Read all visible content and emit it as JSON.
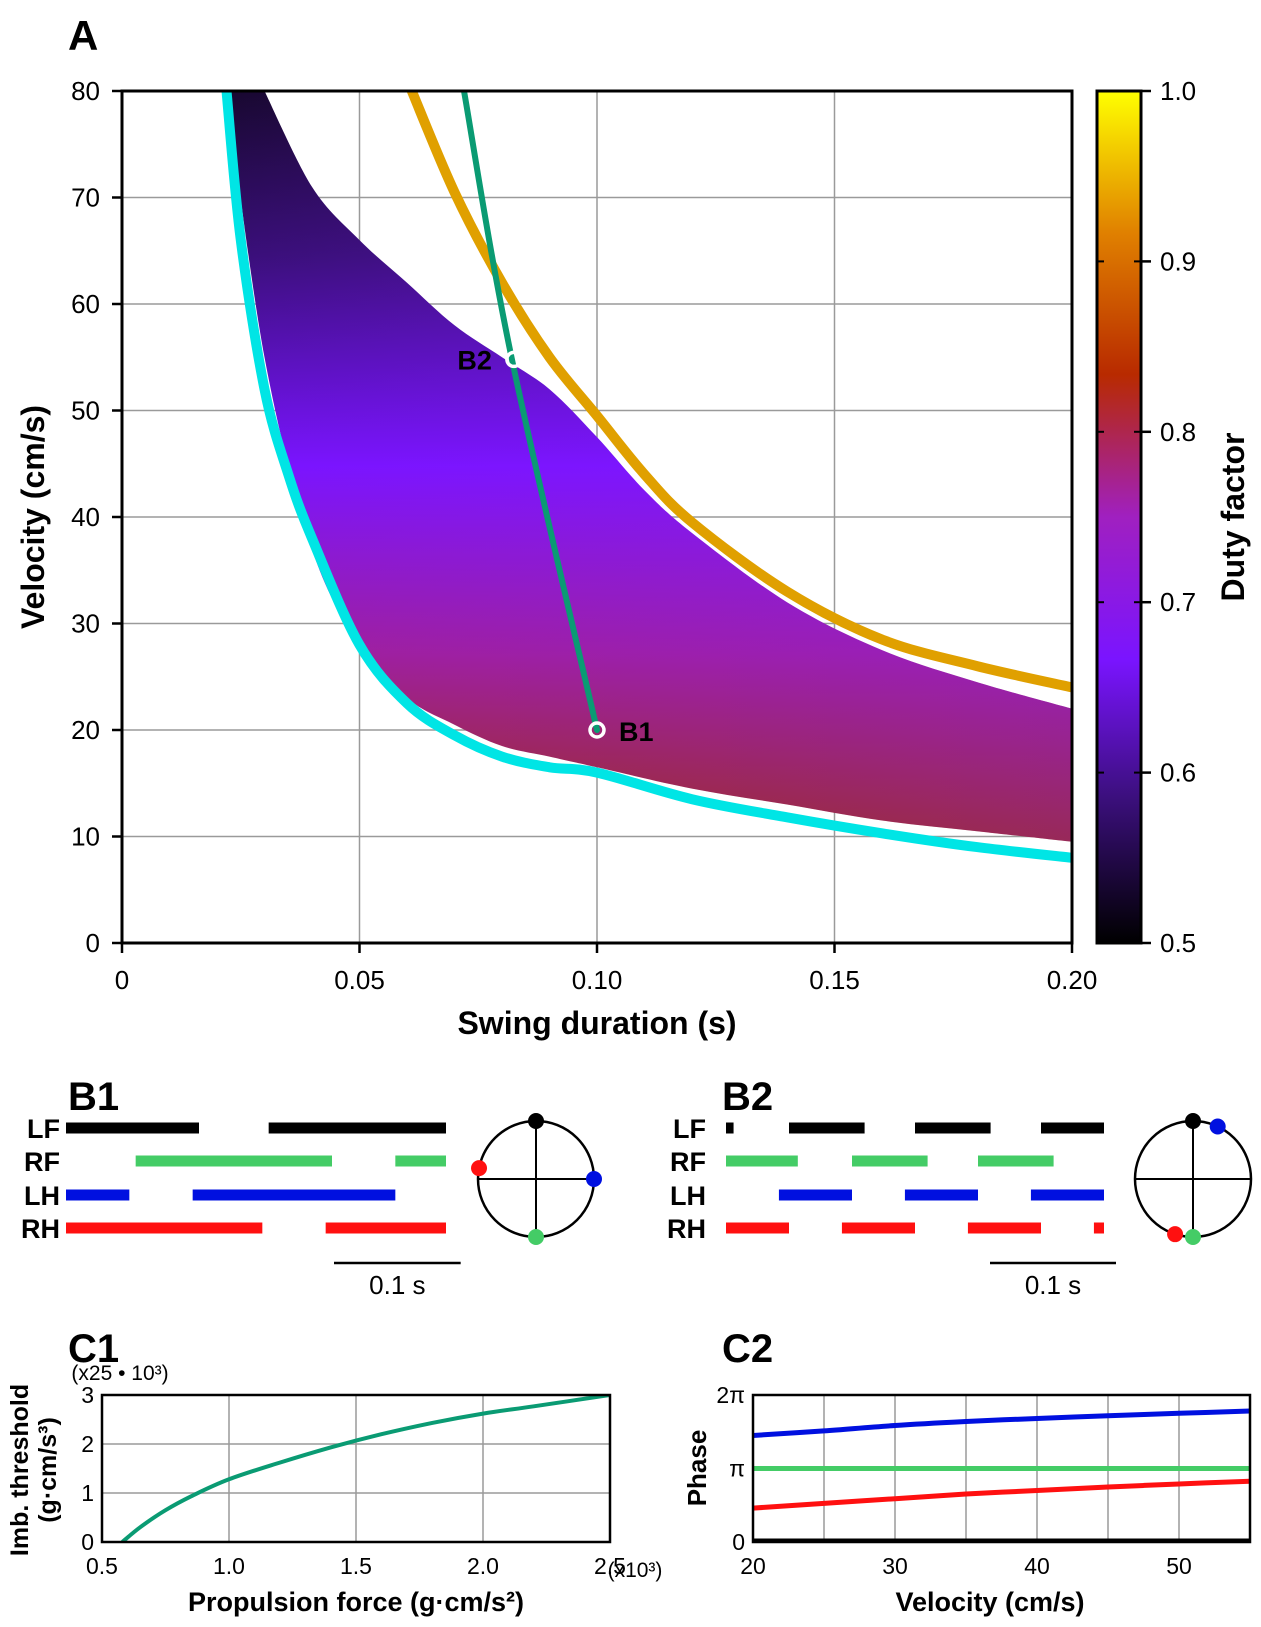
{
  "panels": {
    "A": "A",
    "B1": "B1",
    "B2": "B2",
    "C1": "C1",
    "C2": "C2"
  },
  "chart_data": [
    {
      "id": "A",
      "type": "heatmap",
      "title": "",
      "xlabel": "Swing duration (s)",
      "ylabel": "Velocity (cm/s)",
      "xlim": [
        0,
        0.2
      ],
      "ylim": [
        0,
        80
      ],
      "xticks": [
        {
          "v": 0,
          "label": "0"
        },
        {
          "v": 0.05,
          "label": "0.05"
        },
        {
          "v": 0.1,
          "label": "0.10"
        },
        {
          "v": 0.15,
          "label": "0.15"
        },
        {
          "v": 0.2,
          "label": "0.20"
        }
      ],
      "yticks": [
        {
          "v": 0,
          "label": "0"
        },
        {
          "v": 10,
          "label": "10"
        },
        {
          "v": 20,
          "label": "20"
        },
        {
          "v": 30,
          "label": "30"
        },
        {
          "v": 40,
          "label": "40"
        },
        {
          "v": 50,
          "label": "50"
        },
        {
          "v": 60,
          "label": "60"
        },
        {
          "v": 70,
          "label": "70"
        },
        {
          "v": 80,
          "label": "80"
        }
      ],
      "grid": true,
      "colorbar": {
        "label": "Duty factor",
        "range": [
          0.5,
          1.0
        ],
        "ticks": [
          {
            "v": 0.5,
            "label": "0.5"
          },
          {
            "v": 0.6,
            "label": "0.6"
          },
          {
            "v": 0.7,
            "label": "0.7"
          },
          {
            "v": 0.8,
            "label": "0.8"
          },
          {
            "v": 0.9,
            "label": "0.9"
          },
          {
            "v": 1.0,
            "label": "1.0"
          }
        ],
        "colors": [
          "#000000",
          "#3a0f7a",
          "#7a14ff",
          "#a020c0",
          "#b82a00",
          "#e08000",
          "#ffff00"
        ]
      },
      "region": {
        "description_values": "feasible region between lower and upper bounds",
        "lower_bound": [
          [
            0.022,
            80
          ],
          [
            0.03,
            55
          ],
          [
            0.04,
            37
          ],
          [
            0.05,
            28
          ],
          [
            0.06,
            23
          ],
          [
            0.07,
            20.5
          ],
          [
            0.08,
            18.5
          ],
          [
            0.09,
            17.5
          ],
          [
            0.1,
            16.5
          ],
          [
            0.12,
            14.5
          ],
          [
            0.14,
            13
          ],
          [
            0.16,
            11.5
          ],
          [
            0.18,
            10.5
          ],
          [
            0.2,
            9.5
          ]
        ],
        "upper_bound": [
          [
            0.03,
            80
          ],
          [
            0.04,
            71
          ],
          [
            0.05,
            66
          ],
          [
            0.06,
            62
          ],
          [
            0.07,
            58
          ],
          [
            0.08,
            55
          ],
          [
            0.09,
            52
          ],
          [
            0.1,
            47.5
          ],
          [
            0.11,
            42.5
          ],
          [
            0.12,
            38.5
          ],
          [
            0.14,
            32
          ],
          [
            0.16,
            27.5
          ],
          [
            0.18,
            24.5
          ],
          [
            0.2,
            22
          ]
        ]
      },
      "series": [
        {
          "color": "#00e5e5",
          "points": [
            [
              0.022,
              80
            ],
            [
              0.025,
              66
            ],
            [
              0.03,
              52
            ],
            [
              0.035,
              44
            ],
            [
              0.04,
              38
            ],
            [
              0.05,
              28
            ],
            [
              0.06,
              22.5
            ],
            [
              0.07,
              19.5
            ],
            [
              0.08,
              17.5
            ],
            [
              0.09,
              16.5
            ],
            [
              0.1,
              16
            ],
            [
              0.12,
              13.5
            ],
            [
              0.14,
              11.8
            ],
            [
              0.16,
              10.3
            ],
            [
              0.18,
              9
            ],
            [
              0.2,
              8
            ]
          ]
        },
        {
          "color": "#e0a000",
          "points": [
            [
              0.061,
              80
            ],
            [
              0.07,
              70.5
            ],
            [
              0.08,
              62
            ],
            [
              0.09,
              55
            ],
            [
              0.1,
              49.5
            ],
            [
              0.11,
              44
            ],
            [
              0.12,
              39.5
            ],
            [
              0.14,
              33
            ],
            [
              0.16,
              28.5
            ],
            [
              0.18,
              26
            ],
            [
              0.2,
              24
            ]
          ]
        },
        {
          "color": "#0a9b73",
          "points": [
            [
              0.072,
              80
            ],
            [
              0.082,
              55
            ],
            [
              0.1,
              20
            ]
          ]
        }
      ],
      "points": [
        {
          "label": "B1",
          "x": 0.1,
          "y": 20
        },
        {
          "label": "B2",
          "x": 0.0825,
          "y": 54.8
        }
      ]
    },
    {
      "id": "B1",
      "type": "gait-diagram",
      "period_s": 0.34,
      "scalebar_label": "0.1 s",
      "rows": [
        {
          "label": "LF",
          "color": "#000000",
          "segments": [
            [
              0.0,
              0.105
            ],
            [
              0.16,
              0.3
            ]
          ]
        },
        {
          "label": "RF",
          "color": "#44cc66",
          "segments": [
            [
              0.055,
              0.21
            ],
            [
              0.26,
              0.3
            ]
          ]
        },
        {
          "label": "LH",
          "color": "#0010e0",
          "segments": [
            [
              0.0,
              0.05
            ],
            [
              0.1,
              0.26
            ]
          ]
        },
        {
          "label": "RH",
          "color": "#ff1010",
          "segments": [
            [
              0.0,
              0.155
            ],
            [
              0.205,
              0.3
            ]
          ]
        }
      ],
      "phase_circle": [
        {
          "limb": "LF",
          "color": "#000000",
          "phase": 0.0
        },
        {
          "limb": "RF",
          "color": "#44cc66",
          "phase": 0.5
        },
        {
          "limb": "LH",
          "color": "#0010e0",
          "phase": 0.25
        },
        {
          "limb": "RH",
          "color": "#ff1010",
          "phase": 0.78
        }
      ]
    },
    {
      "id": "B2",
      "type": "gait-diagram",
      "period_s": 0.1,
      "scalebar_label": "0.1 s",
      "rows": [
        {
          "label": "LF",
          "color": "#000000",
          "segments": [
            [
              0.0,
              0.006
            ],
            [
              0.05,
              0.11
            ],
            [
              0.15,
              0.21
            ],
            [
              0.25,
              0.3
            ]
          ]
        },
        {
          "label": "RF",
          "color": "#44cc66",
          "segments": [
            [
              0.0,
              0.057
            ],
            [
              0.1,
              0.16
            ],
            [
              0.2,
              0.26
            ]
          ]
        },
        {
          "label": "LH",
          "color": "#0010e0",
          "segments": [
            [
              0.042,
              0.1
            ],
            [
              0.142,
              0.2
            ],
            [
              0.242,
              0.3
            ]
          ]
        },
        {
          "label": "RH",
          "color": "#ff1010",
          "segments": [
            [
              0.0,
              0.05
            ],
            [
              0.092,
              0.15
            ],
            [
              0.192,
              0.25
            ],
            [
              0.292,
              0.3
            ]
          ]
        }
      ],
      "phase_circle": [
        {
          "limb": "LF",
          "color": "#000000",
          "phase": 0.0
        },
        {
          "limb": "RF",
          "color": "#44cc66",
          "phase": 0.5
        },
        {
          "limb": "LH",
          "color": "#0010e0",
          "phase": 0.07
        },
        {
          "limb": "RH",
          "color": "#ff1010",
          "phase": 0.55
        }
      ]
    },
    {
      "id": "C1",
      "type": "line",
      "title": "",
      "xlabel": "Propulsion force (g·cm/s²)",
      "ylabel": "Imb. threshold (g·cm/s³)",
      "ylabel_line1": "Imb. threshold",
      "ylabel_line2": "(g·cm/s³)",
      "x_multiplier": "(x10³)",
      "y_multiplier": "(x25 • 10³)",
      "xlim": [
        0.5,
        2.5
      ],
      "ylim": [
        0,
        3
      ],
      "xticks": [
        {
          "v": 0.5,
          "label": "0.5"
        },
        {
          "v": 1.0,
          "label": "1.0"
        },
        {
          "v": 1.5,
          "label": "1.5"
        },
        {
          "v": 2.0,
          "label": "2.0"
        },
        {
          "v": 2.5,
          "label": "2.5"
        }
      ],
      "yticks": [
        {
          "v": 0,
          "label": "0"
        },
        {
          "v": 1,
          "label": "1"
        },
        {
          "v": 2,
          "label": "2"
        },
        {
          "v": 3,
          "label": "3"
        }
      ],
      "grid": true,
      "series": [
        {
          "color": "#0a9b73",
          "x": [
            0.58,
            0.65,
            0.75,
            0.85,
            1.0,
            1.2,
            1.4,
            1.6,
            1.8,
            2.0,
            2.2,
            2.5
          ],
          "y": [
            0.0,
            0.3,
            0.65,
            0.93,
            1.28,
            1.62,
            1.93,
            2.2,
            2.43,
            2.62,
            2.77,
            3.0
          ]
        }
      ]
    },
    {
      "id": "C2",
      "type": "line",
      "title": "",
      "xlabel": "Velocity (cm/s)",
      "ylabel": "Phase",
      "xlim": [
        20,
        55
      ],
      "ylim": [
        0,
        6.2832
      ],
      "xticks": [
        {
          "v": 20,
          "label": "20"
        },
        {
          "v": 30,
          "label": "30"
        },
        {
          "v": 40,
          "label": "40"
        },
        {
          "v": 50,
          "label": "50"
        }
      ],
      "minor_grid_x": [
        25,
        35,
        45,
        55
      ],
      "yticks": [
        {
          "v": 0,
          "label": "0"
        },
        {
          "v": 3.1416,
          "label": "π"
        },
        {
          "v": 6.2832,
          "label": "2π"
        }
      ],
      "grid": true,
      "series": [
        {
          "color": "#0010e0",
          "x": [
            20,
            25,
            30,
            35,
            40,
            45,
            50,
            55
          ],
          "y": [
            4.55,
            4.75,
            4.98,
            5.15,
            5.28,
            5.4,
            5.5,
            5.6
          ]
        },
        {
          "color": "#44cc66",
          "x": [
            20,
            25,
            30,
            35,
            40,
            45,
            50,
            55
          ],
          "y": [
            3.14,
            3.14,
            3.14,
            3.14,
            3.14,
            3.14,
            3.14,
            3.14
          ]
        },
        {
          "color": "#ff1010",
          "x": [
            20,
            25,
            30,
            35,
            40,
            45,
            50,
            55
          ],
          "y": [
            1.45,
            1.65,
            1.85,
            2.05,
            2.2,
            2.35,
            2.48,
            2.6
          ]
        },
        {
          "color": "#000000",
          "x": [
            20,
            55
          ],
          "y": [
            0,
            0
          ]
        }
      ]
    }
  ]
}
